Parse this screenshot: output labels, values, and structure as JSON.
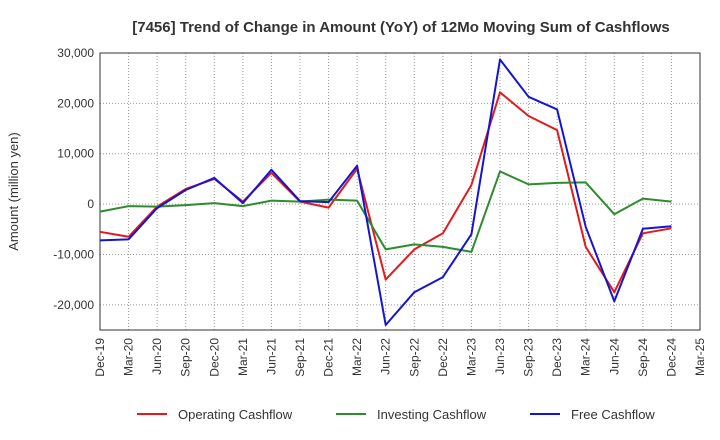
{
  "chart_data": {
    "type": "line",
    "title": "[7456]  Trend of Change in Amount (YoY) of 12Mo Moving Sum of Cashflows",
    "xlabel": "",
    "ylabel": "Amount (million yen)",
    "ylim": [
      -25000,
      30000
    ],
    "yticks": [
      30000,
      20000,
      10000,
      0,
      -10000,
      -20000
    ],
    "ytick_labels": [
      "30,000",
      "20,000",
      "10,000",
      "0",
      "-10,000",
      "-20,000"
    ],
    "categories": [
      "Dec-19",
      "Mar-20",
      "Jun-20",
      "Sep-20",
      "Dec-20",
      "Mar-21",
      "Jun-21",
      "Sep-21",
      "Dec-21",
      "Mar-22",
      "Jun-22",
      "Sep-22",
      "Dec-22",
      "Mar-23",
      "Jun-23",
      "Sep-23",
      "Dec-23",
      "Mar-24",
      "Jun-24",
      "Sep-24",
      "Dec-24",
      "Mar-25"
    ],
    "grid": true,
    "legend_position": "bottom",
    "series": [
      {
        "name": "Operating Cashflow",
        "color": "#e31a1c",
        "values": [
          -5500,
          -6500,
          -500,
          3000,
          5000,
          500,
          6200,
          500,
          -700,
          7000,
          -15000,
          -9000,
          -5800,
          3800,
          22200,
          17500,
          14700,
          -8500,
          -17500,
          -5800,
          -4800,
          null
        ]
      },
      {
        "name": "Investing Cashflow",
        "color": "#2e8b2e",
        "values": [
          -1500,
          -400,
          -500,
          -200,
          200,
          -400,
          700,
          500,
          900,
          700,
          -9000,
          -8000,
          -8500,
          -9500,
          6500,
          3900,
          4200,
          4300,
          -2000,
          1100,
          500,
          null
        ]
      },
      {
        "name": "Free Cashflow",
        "color": "#1515d0",
        "values": [
          -7200,
          -7000,
          -800,
          2800,
          5200,
          200,
          6800,
          600,
          400,
          7600,
          -24000,
          -17500,
          -14500,
          -6000,
          28700,
          21300,
          18800,
          -4500,
          -19300,
          -4900,
          -4400,
          null
        ]
      }
    ]
  }
}
